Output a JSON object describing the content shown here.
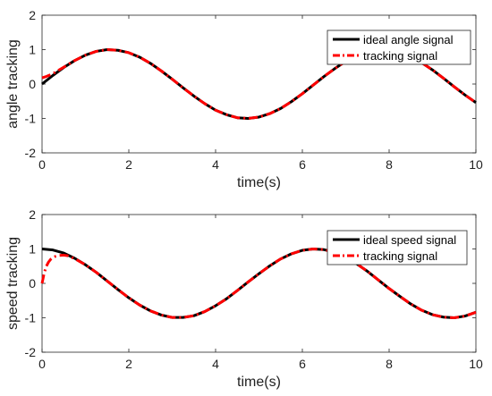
{
  "chart_data": [
    {
      "type": "line",
      "xlabel": "time(s)",
      "ylabel": "angle tracking",
      "xlim": [
        0,
        10
      ],
      "ylim": [
        -2,
        2
      ],
      "xticks": [
        "0",
        "2",
        "4",
        "6",
        "8",
        "10"
      ],
      "yticks": [
        "-2",
        "-1",
        "0",
        "1",
        "2"
      ],
      "grid": false,
      "legend_position": "top-right",
      "series": [
        {
          "name": "ideal angle signal",
          "color": "#000000",
          "style": "solid",
          "x": [
            0,
            0.25,
            0.5,
            0.75,
            1,
            1.25,
            1.5,
            1.75,
            2,
            2.25,
            2.5,
            2.75,
            3,
            3.25,
            3.5,
            3.75,
            4,
            4.25,
            4.5,
            4.75,
            5,
            5.25,
            5.5,
            5.75,
            6,
            6.25,
            6.5,
            6.75,
            7,
            7.25,
            7.5,
            7.75,
            8,
            8.25,
            8.5,
            8.75,
            9,
            9.25,
            9.5,
            9.75,
            10
          ],
          "y": [
            0,
            0.25,
            0.48,
            0.68,
            0.84,
            0.95,
            1.0,
            0.98,
            0.91,
            0.78,
            0.6,
            0.38,
            0.14,
            -0.11,
            -0.35,
            -0.57,
            -0.76,
            -0.89,
            -0.98,
            -1.0,
            -0.96,
            -0.86,
            -0.71,
            -0.51,
            -0.28,
            -0.03,
            0.22,
            0.45,
            0.66,
            0.82,
            0.94,
            0.99,
            0.99,
            0.92,
            0.8,
            0.62,
            0.41,
            0.17,
            -0.08,
            -0.32,
            -0.54
          ]
        },
        {
          "name": "tracking signal",
          "color": "#ff0000",
          "style": "dash-dot",
          "x": [
            0,
            0.1,
            0.25,
            0.5,
            0.75,
            1,
            1.25,
            1.5,
            1.75,
            2,
            2.25,
            2.5,
            2.75,
            3,
            3.25,
            3.5,
            3.75,
            4,
            4.25,
            4.5,
            4.75,
            5,
            5.25,
            5.5,
            5.75,
            6,
            6.25,
            6.5,
            6.75,
            7,
            7.25,
            7.5,
            7.75,
            8,
            8.25,
            8.5,
            8.75,
            9,
            9.25,
            9.5,
            9.75,
            10
          ],
          "y": [
            0.18,
            0.22,
            0.3,
            0.49,
            0.68,
            0.84,
            0.95,
            1.0,
            0.98,
            0.91,
            0.78,
            0.6,
            0.38,
            0.14,
            -0.11,
            -0.35,
            -0.57,
            -0.76,
            -0.89,
            -0.98,
            -1.0,
            -0.96,
            -0.86,
            -0.71,
            -0.51,
            -0.28,
            -0.03,
            0.22,
            0.45,
            0.66,
            0.82,
            0.94,
            0.99,
            0.99,
            0.92,
            0.8,
            0.62,
            0.41,
            0.17,
            -0.08,
            -0.32,
            -0.54
          ]
        }
      ]
    },
    {
      "type": "line",
      "xlabel": "time(s)",
      "ylabel": "speed tracking",
      "xlim": [
        0,
        10
      ],
      "ylim": [
        -2,
        2
      ],
      "xticks": [
        "0",
        "2",
        "4",
        "6",
        "8",
        "10"
      ],
      "yticks": [
        "-2",
        "-1",
        "0",
        "1",
        "2"
      ],
      "grid": false,
      "legend_position": "top-right",
      "series": [
        {
          "name": "ideal speed signal",
          "color": "#000000",
          "style": "solid",
          "x": [
            0,
            0.25,
            0.5,
            0.75,
            1,
            1.25,
            1.5,
            1.75,
            2,
            2.25,
            2.5,
            2.75,
            3,
            3.25,
            3.5,
            3.75,
            4,
            4.25,
            4.5,
            4.75,
            5,
            5.25,
            5.5,
            5.75,
            6,
            6.25,
            6.5,
            6.75,
            7,
            7.25,
            7.5,
            7.75,
            8,
            8.25,
            8.5,
            8.75,
            9,
            9.25,
            9.5,
            9.75,
            10
          ],
          "y": [
            1.0,
            0.97,
            0.88,
            0.73,
            0.54,
            0.32,
            0.07,
            -0.18,
            -0.42,
            -0.63,
            -0.8,
            -0.92,
            -0.99,
            -0.99,
            -0.94,
            -0.82,
            -0.65,
            -0.45,
            -0.21,
            0.04,
            0.28,
            0.51,
            0.71,
            0.86,
            0.96,
            1.0,
            0.98,
            0.9,
            0.75,
            0.57,
            0.35,
            0.1,
            -0.15,
            -0.38,
            -0.6,
            -0.78,
            -0.91,
            -0.98,
            -1.0,
            -0.95,
            -0.84
          ]
        },
        {
          "name": "tracking signal",
          "color": "#ff0000",
          "style": "dash-dot",
          "x": [
            0,
            0.05,
            0.1,
            0.15,
            0.2,
            0.25,
            0.3,
            0.4,
            0.5,
            0.6,
            0.75,
            1,
            1.25,
            1.5,
            1.75,
            2,
            2.25,
            2.5,
            2.75,
            3,
            3.25,
            3.5,
            3.75,
            4,
            4.25,
            4.5,
            4.75,
            5,
            5.25,
            5.5,
            5.75,
            6,
            6.25,
            6.5,
            6.75,
            7,
            7.25,
            7.5,
            7.75,
            8,
            8.25,
            8.5,
            8.75,
            9,
            9.25,
            9.5,
            9.75,
            10
          ],
          "y": [
            0.0,
            0.3,
            0.5,
            0.62,
            0.7,
            0.75,
            0.78,
            0.81,
            0.82,
            0.8,
            0.72,
            0.54,
            0.32,
            0.07,
            -0.18,
            -0.42,
            -0.63,
            -0.8,
            -0.92,
            -0.99,
            -0.99,
            -0.94,
            -0.82,
            -0.65,
            -0.45,
            -0.21,
            0.04,
            0.28,
            0.51,
            0.71,
            0.86,
            0.96,
            1.0,
            0.98,
            0.9,
            0.75,
            0.57,
            0.35,
            0.1,
            -0.15,
            -0.38,
            -0.6,
            -0.78,
            -0.91,
            -0.98,
            -1.0,
            -0.95,
            -0.84
          ]
        }
      ]
    }
  ]
}
